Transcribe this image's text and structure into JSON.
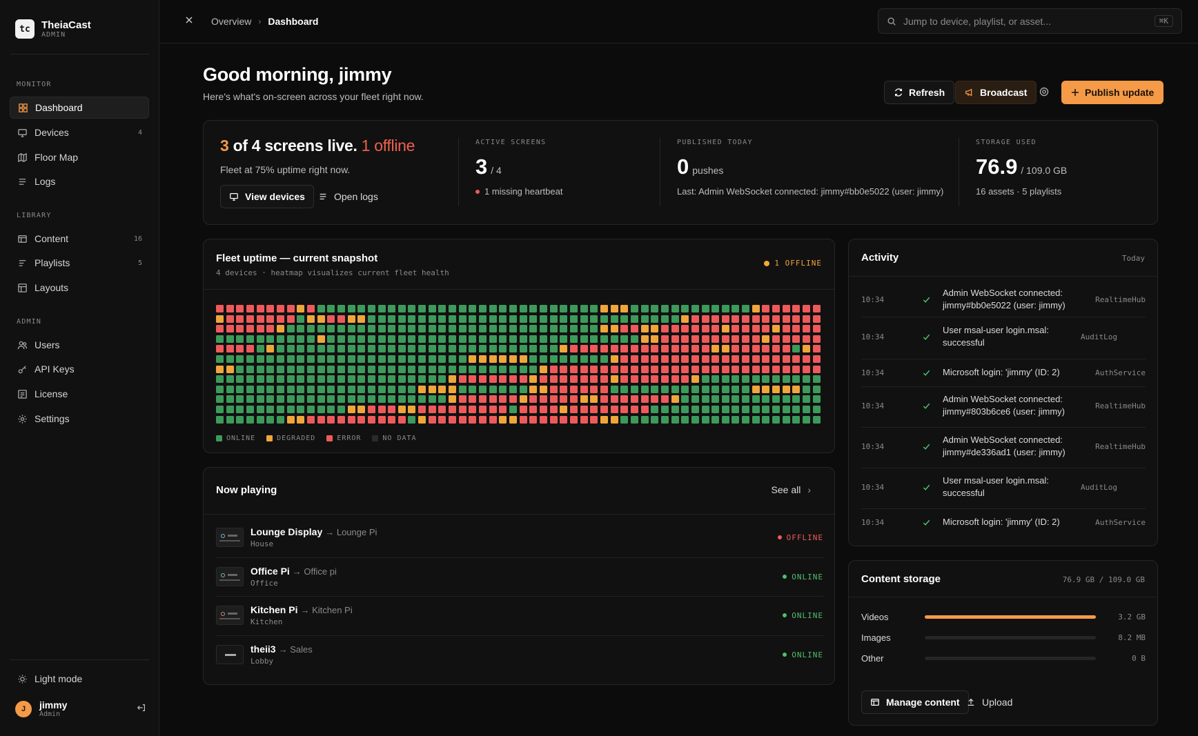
{
  "brand": {
    "logo": "tc",
    "name": "TheiaCast",
    "role": "ADMIN"
  },
  "sidebar": {
    "sections": [
      {
        "label": "MONITOR",
        "items": [
          {
            "label": "Dashboard",
            "icon": "grid-icon",
            "count": ""
          },
          {
            "label": "Devices",
            "icon": "monitor-icon",
            "count": "4"
          },
          {
            "label": "Floor Map",
            "icon": "map-icon",
            "count": ""
          },
          {
            "label": "Logs",
            "icon": "lines-icon",
            "count": ""
          }
        ]
      },
      {
        "label": "LIBRARY",
        "items": [
          {
            "label": "Content",
            "icon": "content-icon",
            "count": "16"
          },
          {
            "label": "Playlists",
            "icon": "playlist-icon",
            "count": "5"
          },
          {
            "label": "Layouts",
            "icon": "layout-icon",
            "count": ""
          }
        ]
      },
      {
        "label": "ADMIN",
        "items": [
          {
            "label": "Users",
            "icon": "users-icon",
            "count": ""
          },
          {
            "label": "API Keys",
            "icon": "key-icon",
            "count": ""
          },
          {
            "label": "License",
            "icon": "license-icon",
            "count": ""
          },
          {
            "label": "Settings",
            "icon": "gear-icon",
            "count": ""
          }
        ]
      }
    ],
    "light_mode": "Light mode",
    "user": {
      "initial": "J",
      "name": "jimmy",
      "role": "Admin"
    }
  },
  "topbar": {
    "crumb_root": "Overview",
    "crumb_current": "Dashboard",
    "search_placeholder": "Jump to device, playlist, or asset...",
    "search_kbd": "⌘K"
  },
  "greeting": {
    "title": "Good morning, jimmy",
    "subtitle": "Here's what's on-screen across your fleet right now."
  },
  "actions": {
    "refresh": "Refresh",
    "broadcast": "Broadcast",
    "publish": "Publish update"
  },
  "summary": {
    "live_count": "3",
    "live_text": " of 4 screens live.",
    "offline_text": "1 offline",
    "uptime_text": "Fleet at 75% uptime right now.",
    "view_devices": "View devices",
    "open_logs": "Open logs",
    "stats": [
      {
        "label": "ACTIVE SCREENS",
        "big": "3",
        "small": "/ 4",
        "note": "1 missing heartbeat"
      },
      {
        "label": "PUBLISHED TODAY",
        "big": "0",
        "small": "pushes",
        "note": "Last:  Admin WebSocket connected: jimmy#bb0e5022 (user: jimmy)"
      },
      {
        "label": "STORAGE USED",
        "big": "76.9",
        "small": "/ 109.0 GB",
        "note": "16 assets · 5 playlists"
      }
    ]
  },
  "uptime": {
    "title": "Fleet uptime — current snapshot",
    "subtitle": "4 devices · heatmap visualizes current fleet health",
    "badge": "1 OFFLINE",
    "legend": [
      "ONLINE",
      "DEGRADED",
      "ERROR",
      "NO DATA"
    ],
    "colors": {
      "online": "#3d9a5b",
      "degraded": "#f0a63a",
      "error": "#ee5a5a",
      "nodata": "#2b2b2b"
    },
    "rows": [
      "EEEEEEEEDEGGGGGGGGGGGGGGGGGGGGGGGGGGGGDDDGGGGGGGGGGGGDEEEEEEEE",
      "DEEEEEEEGDDEEDDGGGGGGGGGGGGGGGGGGGGGGGGGGGGGGGDEEEEEEEEEEEEEEE",
      "EEEEEEDGGGGGGGGGGGGGGGGGGGGGGGGGGGGGGGDDEEDDEEEEEEDEEEEDEEEEEEDE",
      "GGGGGGGGGGDGGGGGGGGGGGGGGGGGGGGGGGGGGGGGGGDDEEEEEEEEEEDEEEEEEEED",
      "EEEEGDGGGGGGGGGGGGGGGGGGGGGGGGGGGGDEEEEEEEEEEEEEEDDEEEEEEGDEEG",
      "GGGGGGGGGGGGGGGGGGGGGGGGGDDDDDDGGGGGGGGDEEEEEEEEEEEEEEEEEEEEEEGD",
      "DDGGGGGGGGGGGGGGGGGGGGGGGGGGGGGGDEEEEEEEEEEEEEEEEEEEEEEEEEEEEDGG",
      "GGGGGGGGGGGGGGGGGGGGGGGDEEEEEEEDEEEEEEEDEEEEEEEDGGGGGGGGGGGGGGGG",
      "GGGGGGGGGGGGGGGGGGGGDDDDGGGGGGGDDEEEEEEGGGGGGGGGGGGGGDDDDDGGGGGG",
      "GGGGGGGGGGGGGGGGGGGGGGGDEEEEEEDEEEEEDDEEEEEEEDGGGGGGGGGGGGGGGGGG",
      "GGGGGGGGGGGGGDDEEEDDEEEEEEEEEGEEEEDEEEEEEEEGGGGGGGGGGGGGGGGGGGGG",
      "GGGGGGGDDEEEEEEEEEEGDEEEEEEEDDEEEEEEEEDDGGGGGGGGGGGGGGGGGGGGGGGG"
    ]
  },
  "now_playing": {
    "title": "Now playing",
    "see_all": "See all",
    "items": [
      {
        "name": "Lounge Display",
        "playlist": "→ Lounge Pi",
        "location": "House",
        "status": "OFFLINE",
        "status_color": "#ee5a5a"
      },
      {
        "name": "Office Pi",
        "playlist": "→ Office pi",
        "location": "Office",
        "status": "ONLINE",
        "status_color": "#4fbf6b"
      },
      {
        "name": "Kitchen Pi",
        "playlist": "→ Kitchen Pi",
        "location": "Kitchen",
        "status": "ONLINE",
        "status_color": "#4fbf6b"
      },
      {
        "name": "theii3",
        "playlist": "→ Sales",
        "location": "Lobby",
        "status": "ONLINE",
        "status_color": "#4fbf6b"
      }
    ]
  },
  "activity": {
    "title": "Activity",
    "range": "Today",
    "items": [
      {
        "time": "10:34",
        "message": "Admin WebSocket connected: jimmy#bb0e5022 (user: jimmy)",
        "source": "RealtimeHub"
      },
      {
        "time": "10:34",
        "message": "User msal-user login.msal: successful",
        "source": "AuditLog"
      },
      {
        "time": "10:34",
        "message": "Microsoft login: 'jimmy' (ID: 2)",
        "source": "AuthService"
      },
      {
        "time": "10:34",
        "message": "Admin WebSocket connected: jimmy#803b6ce6 (user: jimmy)",
        "source": "RealtimeHub"
      },
      {
        "time": "10:34",
        "message": "Admin WebSocket connected: jimmy#de336ad1 (user: jimmy)",
        "source": "RealtimeHub"
      },
      {
        "time": "10:34",
        "message": "User msal-user login.msal: successful",
        "source": "AuditLog"
      },
      {
        "time": "10:34",
        "message": "Microsoft login: 'jimmy' (ID: 2)",
        "source": "AuthService"
      }
    ]
  },
  "storage": {
    "title": "Content storage",
    "total": "76.9 GB / 109.0 GB",
    "items": [
      {
        "label": "Videos",
        "value": "3.2 GB",
        "fraction": 1.0
      },
      {
        "label": "Images",
        "value": "8.2 MB",
        "fraction": 0.0
      },
      {
        "label": "Other",
        "value": "0 B",
        "fraction": 0.0
      }
    ],
    "manage": "Manage content",
    "upload": "Upload"
  }
}
